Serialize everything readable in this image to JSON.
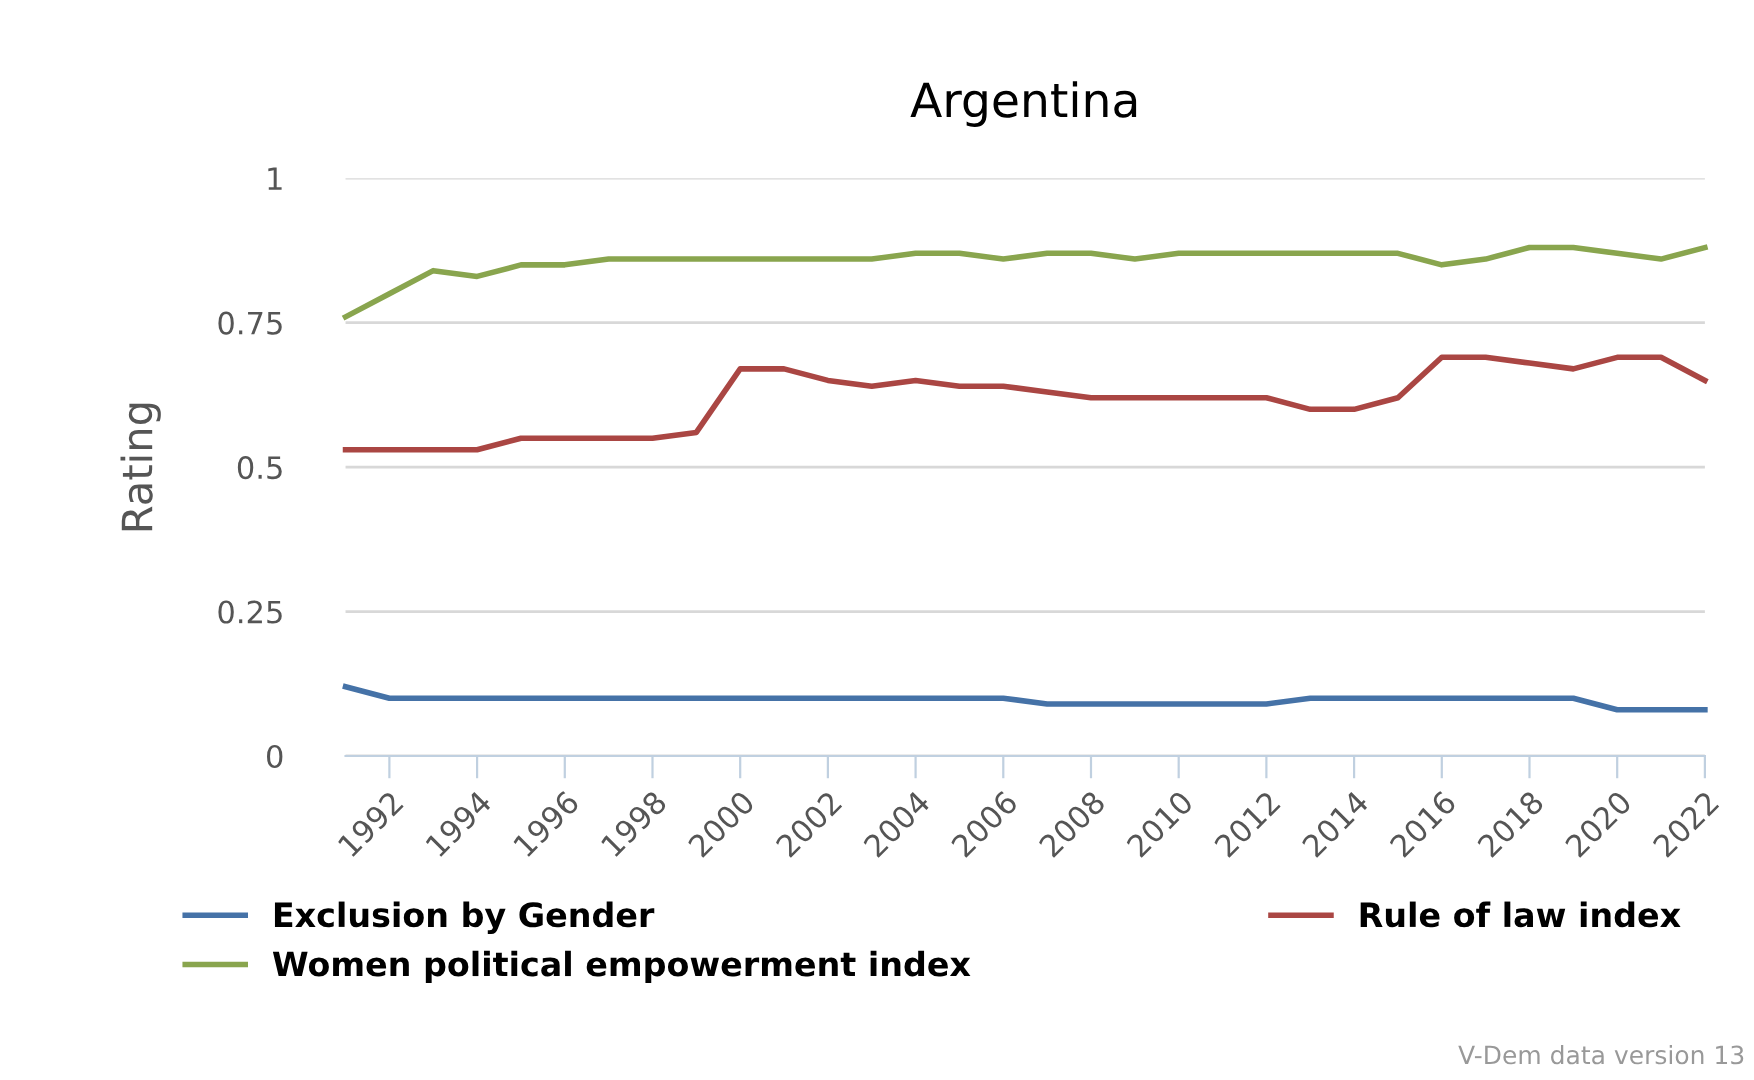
{
  "chart_data": {
    "type": "line",
    "title": "Argentina",
    "ylabel": "Rating",
    "x": [
      1991,
      1992,
      1993,
      1994,
      1995,
      1996,
      1997,
      1998,
      1999,
      2000,
      2001,
      2002,
      2003,
      2004,
      2005,
      2006,
      2007,
      2008,
      2009,
      2010,
      2011,
      2012,
      2013,
      2014,
      2015,
      2016,
      2017,
      2018,
      2019,
      2020,
      2021,
      2022
    ],
    "series": [
      {
        "name": "Exclusion by Gender",
        "color": "#4572a7",
        "values": [
          0.12,
          0.1,
          0.1,
          0.1,
          0.1,
          0.1,
          0.1,
          0.1,
          0.1,
          0.1,
          0.1,
          0.1,
          0.1,
          0.1,
          0.1,
          0.1,
          0.09,
          0.09,
          0.09,
          0.09,
          0.09,
          0.09,
          0.1,
          0.1,
          0.1,
          0.1,
          0.1,
          0.1,
          0.1,
          0.08,
          0.08,
          0.08
        ]
      },
      {
        "name": "Rule of law index",
        "color": "#aa4643",
        "values": [
          0.53,
          0.53,
          0.53,
          0.53,
          0.55,
          0.55,
          0.55,
          0.55,
          0.56,
          0.67,
          0.67,
          0.65,
          0.64,
          0.65,
          0.64,
          0.64,
          0.63,
          0.62,
          0.62,
          0.62,
          0.62,
          0.62,
          0.6,
          0.6,
          0.62,
          0.69,
          0.69,
          0.68,
          0.67,
          0.69,
          0.69,
          0.65
        ]
      },
      {
        "name": "Women political empowerment index",
        "color": "#89a54e",
        "values": [
          0.76,
          0.8,
          0.84,
          0.83,
          0.85,
          0.85,
          0.86,
          0.86,
          0.86,
          0.86,
          0.86,
          0.86,
          0.86,
          0.87,
          0.87,
          0.86,
          0.87,
          0.87,
          0.86,
          0.87,
          0.87,
          0.87,
          0.87,
          0.87,
          0.87,
          0.85,
          0.86,
          0.88,
          0.88,
          0.87,
          0.86,
          0.88
        ]
      }
    ],
    "xlim": [
      1991,
      2022
    ],
    "xticks": [
      1992,
      1994,
      1996,
      1998,
      2000,
      2002,
      2004,
      2006,
      2008,
      2010,
      2012,
      2014,
      2016,
      2018,
      2020,
      2022
    ],
    "ylim": [
      0,
      1
    ],
    "yticks": [
      0,
      0.25,
      0.5,
      0.75,
      1
    ],
    "grid": "y",
    "legend": "bottom",
    "marker": "none",
    "line_style": "solid",
    "annotations": [
      "V-Dem data version 13"
    ]
  }
}
